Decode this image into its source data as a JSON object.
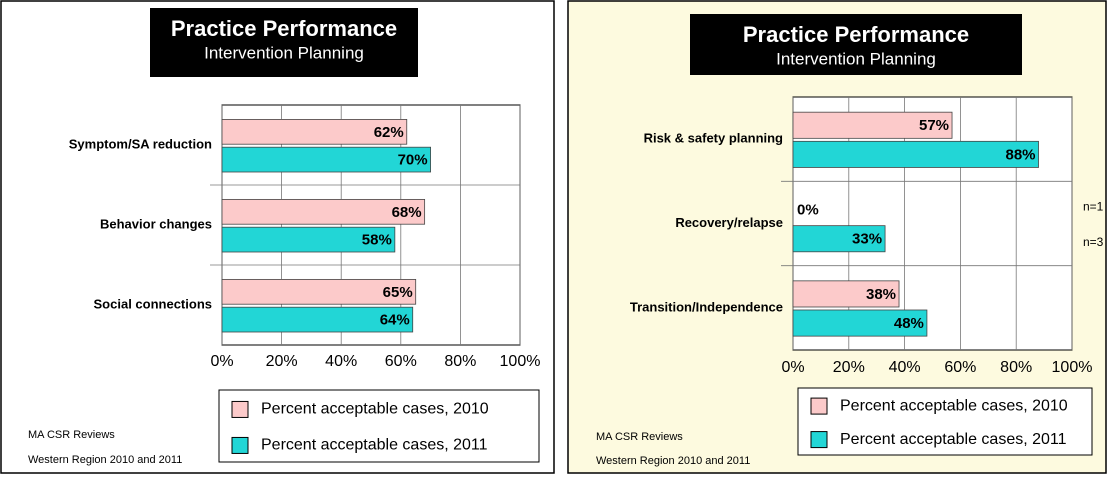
{
  "chart_data": [
    {
      "type": "bar",
      "orientation": "horizontal",
      "title": "Practice Performance",
      "subtitle": "Intervention Planning",
      "categories": [
        "Symptom/SA reduction",
        "Behavior changes",
        "Social connections"
      ],
      "series": [
        {
          "name": "Percent acceptable cases, 2010",
          "color": "#fccaca",
          "values": [
            62,
            68,
            65
          ],
          "value_labels": [
            "62%",
            "68%",
            "65%"
          ]
        },
        {
          "name": "Percent acceptable cases, 2011",
          "color": "#22d6d6",
          "values": [
            70,
            58,
            64
          ],
          "value_labels": [
            "70%",
            "58%",
            "64%"
          ]
        }
      ],
      "xlim": [
        0,
        100
      ],
      "xticks": [
        {
          "value": 0,
          "label": "0%"
        },
        {
          "value": 20,
          "label": "20%"
        },
        {
          "value": 40,
          "label": "40%"
        },
        {
          "value": 60,
          "label": "60%"
        },
        {
          "value": 80,
          "label": "80%"
        },
        {
          "value": 100,
          "label": "100%"
        }
      ],
      "grid": true,
      "source": [
        "MA CSR Reviews",
        "Western Region 2010 and 2011"
      ]
    },
    {
      "type": "bar",
      "orientation": "horizontal",
      "title": "Practice Performance",
      "subtitle": "Intervention Planning",
      "categories": [
        "Risk & safety planning",
        "Recovery/relapse",
        "Transition/Independence"
      ],
      "series": [
        {
          "name": "Percent acceptable cases, 2010",
          "color": "#fccaca",
          "values": [
            57,
            0,
            38
          ],
          "value_labels": [
            "57%",
            "0%",
            "38%"
          ]
        },
        {
          "name": "Percent acceptable cases, 2011",
          "color": "#22d6d6",
          "values": [
            88,
            33,
            48
          ],
          "value_labels": [
            "88%",
            "33%",
            "48%"
          ]
        }
      ],
      "xlim": [
        0,
        100
      ],
      "xticks": [
        {
          "value": 0,
          "label": "0%"
        },
        {
          "value": 20,
          "label": "20%"
        },
        {
          "value": 40,
          "label": "40%"
        },
        {
          "value": 60,
          "label": "60%"
        },
        {
          "value": 80,
          "label": "80%"
        },
        {
          "value": 100,
          "label": "100%"
        }
      ],
      "grid": true,
      "annotations": [
        "n=1",
        "n=3"
      ],
      "source": [
        "MA CSR Reviews",
        "Western Region 2010 and 2011"
      ]
    }
  ]
}
